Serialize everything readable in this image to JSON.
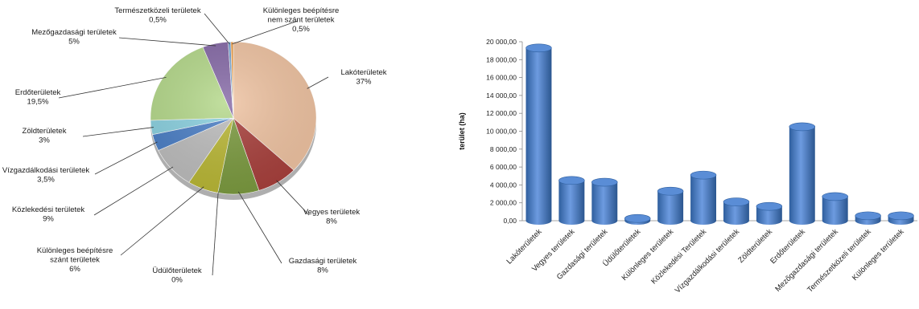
{
  "chart_data": [
    {
      "type": "pie",
      "legend": "none",
      "slices": [
        {
          "name": "Lakóterületek",
          "label_lines": [
            "Lakóterületek"
          ],
          "value_label": "37%",
          "value": 37,
          "color": "#efc3a2"
        },
        {
          "name": "Vegyes területek",
          "label_lines": [
            "Vegyes területek"
          ],
          "value_label": "8%",
          "value": 8,
          "color": "#a8403c"
        },
        {
          "name": "Gazdasági területek",
          "label_lines": [
            "Gazdasági területek"
          ],
          "value_label": "8%",
          "value": 8,
          "color": "#7b9a3f"
        },
        {
          "name": "Üdülőterületek",
          "label_lines": [
            "Üdülőterületek"
          ],
          "value_label": "0%",
          "value": 0,
          "color": "#8fa84a"
        },
        {
          "name": "Különleges beépítésre szánt területek",
          "label_lines": [
            "Különleges beépítésre",
            "szánt területek"
          ],
          "value_label": "6%",
          "value": 6,
          "color": "#b9b735"
        },
        {
          "name": "Közlekedési területek",
          "label_lines": [
            "Közlekedési  területek"
          ],
          "value_label": "9%",
          "value": 9,
          "color": "#bcbcbc"
        },
        {
          "name": "Vízgazdálkodási területek",
          "label_lines": [
            "Vízgazdálkodási területek"
          ],
          "value_label": "3,5%",
          "value": 3.5,
          "color": "#4a7ec5"
        },
        {
          "name": "Zöldterületek",
          "label_lines": [
            "Zöldterületek"
          ],
          "value_label": "3%",
          "value": 3,
          "color": "#8ad0df"
        },
        {
          "name": "Erdőterületek",
          "label_lines": [
            "Erdőterületek"
          ],
          "value_label": "19,5%",
          "value": 19.5,
          "color": "#b4d88a"
        },
        {
          "name": "Mezőgazdasági területek",
          "label_lines": [
            "Mezőgazdasági területek"
          ],
          "value_label": "5%",
          "value": 5,
          "color": "#8569a6"
        },
        {
          "name": "Természetközeli területek",
          "label_lines": [
            "Természetközeli területek"
          ],
          "value_label": "0,5%",
          "value": 0.5,
          "color": "#6fa0d0"
        },
        {
          "name": "Különleges beépítésre nem szánt területek",
          "label_lines": [
            "Különleges beépítésre",
            "nem szánt  területek"
          ],
          "value_label": "0,5%",
          "value": 0.5,
          "color": "#f0a04a"
        }
      ]
    },
    {
      "type": "bar",
      "ylabel": "terület (ha)",
      "ylim": [
        0,
        20000
      ],
      "ytick_step": 2000,
      "yticks": [
        "0,00",
        "2 000,00",
        "4 000,00",
        "6 000,00",
        "8 000,00",
        "10 000,00",
        "12 000,00",
        "14 000,00",
        "16 000,00",
        "18 000,00",
        "20 000,00"
      ],
      "legend": "none",
      "bar_color": "#4a7ec5",
      "categories": [
        "Lakóterületek",
        "Vegyes területek",
        "Gazdasági területek",
        "Üdülőterületek",
        "Különleges területek",
        "Közlekedési Területek",
        "Vízgazdálkodási területek",
        "Zöldterületek",
        "Erdőterületek",
        "Mezőgazdasági területek",
        "Természetközeli területek",
        "Különleges területek"
      ],
      "values": [
        19300,
        4500,
        4300,
        250,
        3300,
        5100,
        2100,
        1600,
        10500,
        2700,
        550,
        550
      ]
    }
  ]
}
